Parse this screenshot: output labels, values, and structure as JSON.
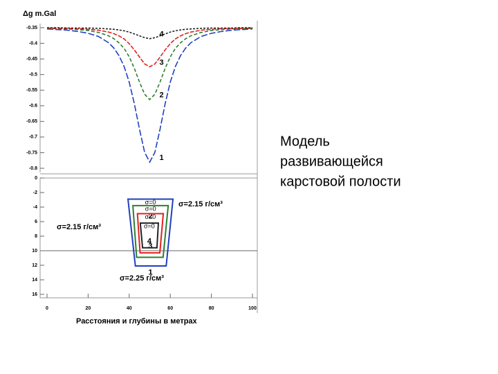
{
  "chart_data": [
    {
      "type": "line",
      "y_label": "Δg m.Gal",
      "x": [
        0,
        5,
        10,
        15,
        20,
        25,
        30,
        32.5,
        35,
        37.5,
        40,
        42.5,
        45,
        47.5,
        50,
        52.5,
        55,
        57.5,
        60,
        62.5,
        65,
        67.5,
        70,
        75,
        80,
        85,
        90,
        95,
        100
      ],
      "xlim": [
        0,
        100
      ],
      "ylim": [
        -0.35,
        -0.8
      ],
      "yticks": [
        -0.35,
        -0.4,
        -0.45,
        -0.5,
        -0.55,
        -0.6,
        -0.65,
        -0.7,
        -0.75,
        -0.8
      ],
      "series": [
        {
          "name": "1",
          "color": "#1f3fbf",
          "values": [
            -0.354,
            -0.356,
            -0.358,
            -0.362,
            -0.368,
            -0.378,
            -0.398,
            -0.415,
            -0.439,
            -0.474,
            -0.524,
            -0.593,
            -0.675,
            -0.749,
            -0.78,
            -0.749,
            -0.675,
            -0.593,
            -0.524,
            -0.474,
            -0.439,
            -0.415,
            -0.398,
            -0.378,
            -0.368,
            -0.362,
            -0.358,
            -0.356,
            -0.354
          ]
        },
        {
          "name": "2",
          "color": "#2e7d32",
          "values": [
            -0.352,
            -0.353,
            -0.354,
            -0.356,
            -0.359,
            -0.365,
            -0.376,
            -0.385,
            -0.398,
            -0.416,
            -0.443,
            -0.48,
            -0.524,
            -0.563,
            -0.58,
            -0.563,
            -0.524,
            -0.48,
            -0.443,
            -0.416,
            -0.398,
            -0.385,
            -0.376,
            -0.365,
            -0.359,
            -0.356,
            -0.354,
            -0.353,
            -0.352
          ]
        },
        {
          "name": "3",
          "color": "#e02020",
          "values": [
            -0.351,
            -0.352,
            -0.352,
            -0.353,
            -0.355,
            -0.358,
            -0.364,
            -0.369,
            -0.376,
            -0.386,
            -0.401,
            -0.421,
            -0.444,
            -0.466,
            -0.475,
            -0.466,
            -0.444,
            -0.421,
            -0.401,
            -0.386,
            -0.376,
            -0.369,
            -0.364,
            -0.358,
            -0.355,
            -0.353,
            -0.352,
            -0.352,
            -0.351
          ]
        },
        {
          "name": "4",
          "color": "#222222",
          "values": [
            -0.35,
            -0.35,
            -0.351,
            -0.351,
            -0.351,
            -0.352,
            -0.354,
            -0.355,
            -0.357,
            -0.36,
            -0.364,
            -0.37,
            -0.376,
            -0.382,
            -0.385,
            -0.382,
            -0.376,
            -0.37,
            -0.364,
            -0.36,
            -0.357,
            -0.355,
            -0.354,
            -0.352,
            -0.351,
            -0.351,
            -0.351,
            -0.35,
            -0.35
          ]
        }
      ]
    },
    {
      "type": "section",
      "x_label": "Расстояния и глубины в метрах",
      "xlim": [
        0,
        100
      ],
      "ylim": [
        0,
        16
      ],
      "xticks": [
        0,
        20,
        40,
        60,
        80,
        100
      ],
      "yticks": [
        0,
        {
          "value": 2,
          "label": "-2"
        },
        {
          "value": 4,
          "label": "-4"
        },
        6,
        8,
        10,
        12,
        14,
        16
      ],
      "hline": 10,
      "cavities": [
        {
          "label": "1",
          "cavity_label": "σ=0",
          "color": "#1f3fbf",
          "top": 2.9,
          "bottom": 12.1,
          "top_x": [
            39.4,
            61.3
          ],
          "bottom_x": [
            43,
            58
          ]
        },
        {
          "label": "2",
          "cavity_label": "σ=0",
          "color": "#2e7d32",
          "top": 3.8,
          "bottom": 10.9,
          "top_x": [
            41.8,
            59
          ],
          "bottom_x": [
            43.6,
            56.5
          ]
        },
        {
          "label": "3",
          "cavity_label": "σ=0",
          "color": "#e02020",
          "top": 4.9,
          "bottom": 10.3,
          "top_x": [
            44,
            56.6
          ],
          "bottom_x": [
            45.3,
            54.9
          ]
        },
        {
          "label": "4",
          "cavity_label": "σ=0",
          "color": "#222222",
          "top": 6.2,
          "bottom": 9.6,
          "top_x": [
            45.4,
            54.2
          ],
          "bottom_x": [
            46.5,
            53.5
          ]
        }
      ],
      "annotations": [
        "σ=2.15 г/см³",
        "σ=2.15 г/см³",
        "σ=2.25 г/см³"
      ]
    }
  ],
  "side_text": [
    "Модель",
    "развивающейся",
    "карстовой  полости"
  ]
}
